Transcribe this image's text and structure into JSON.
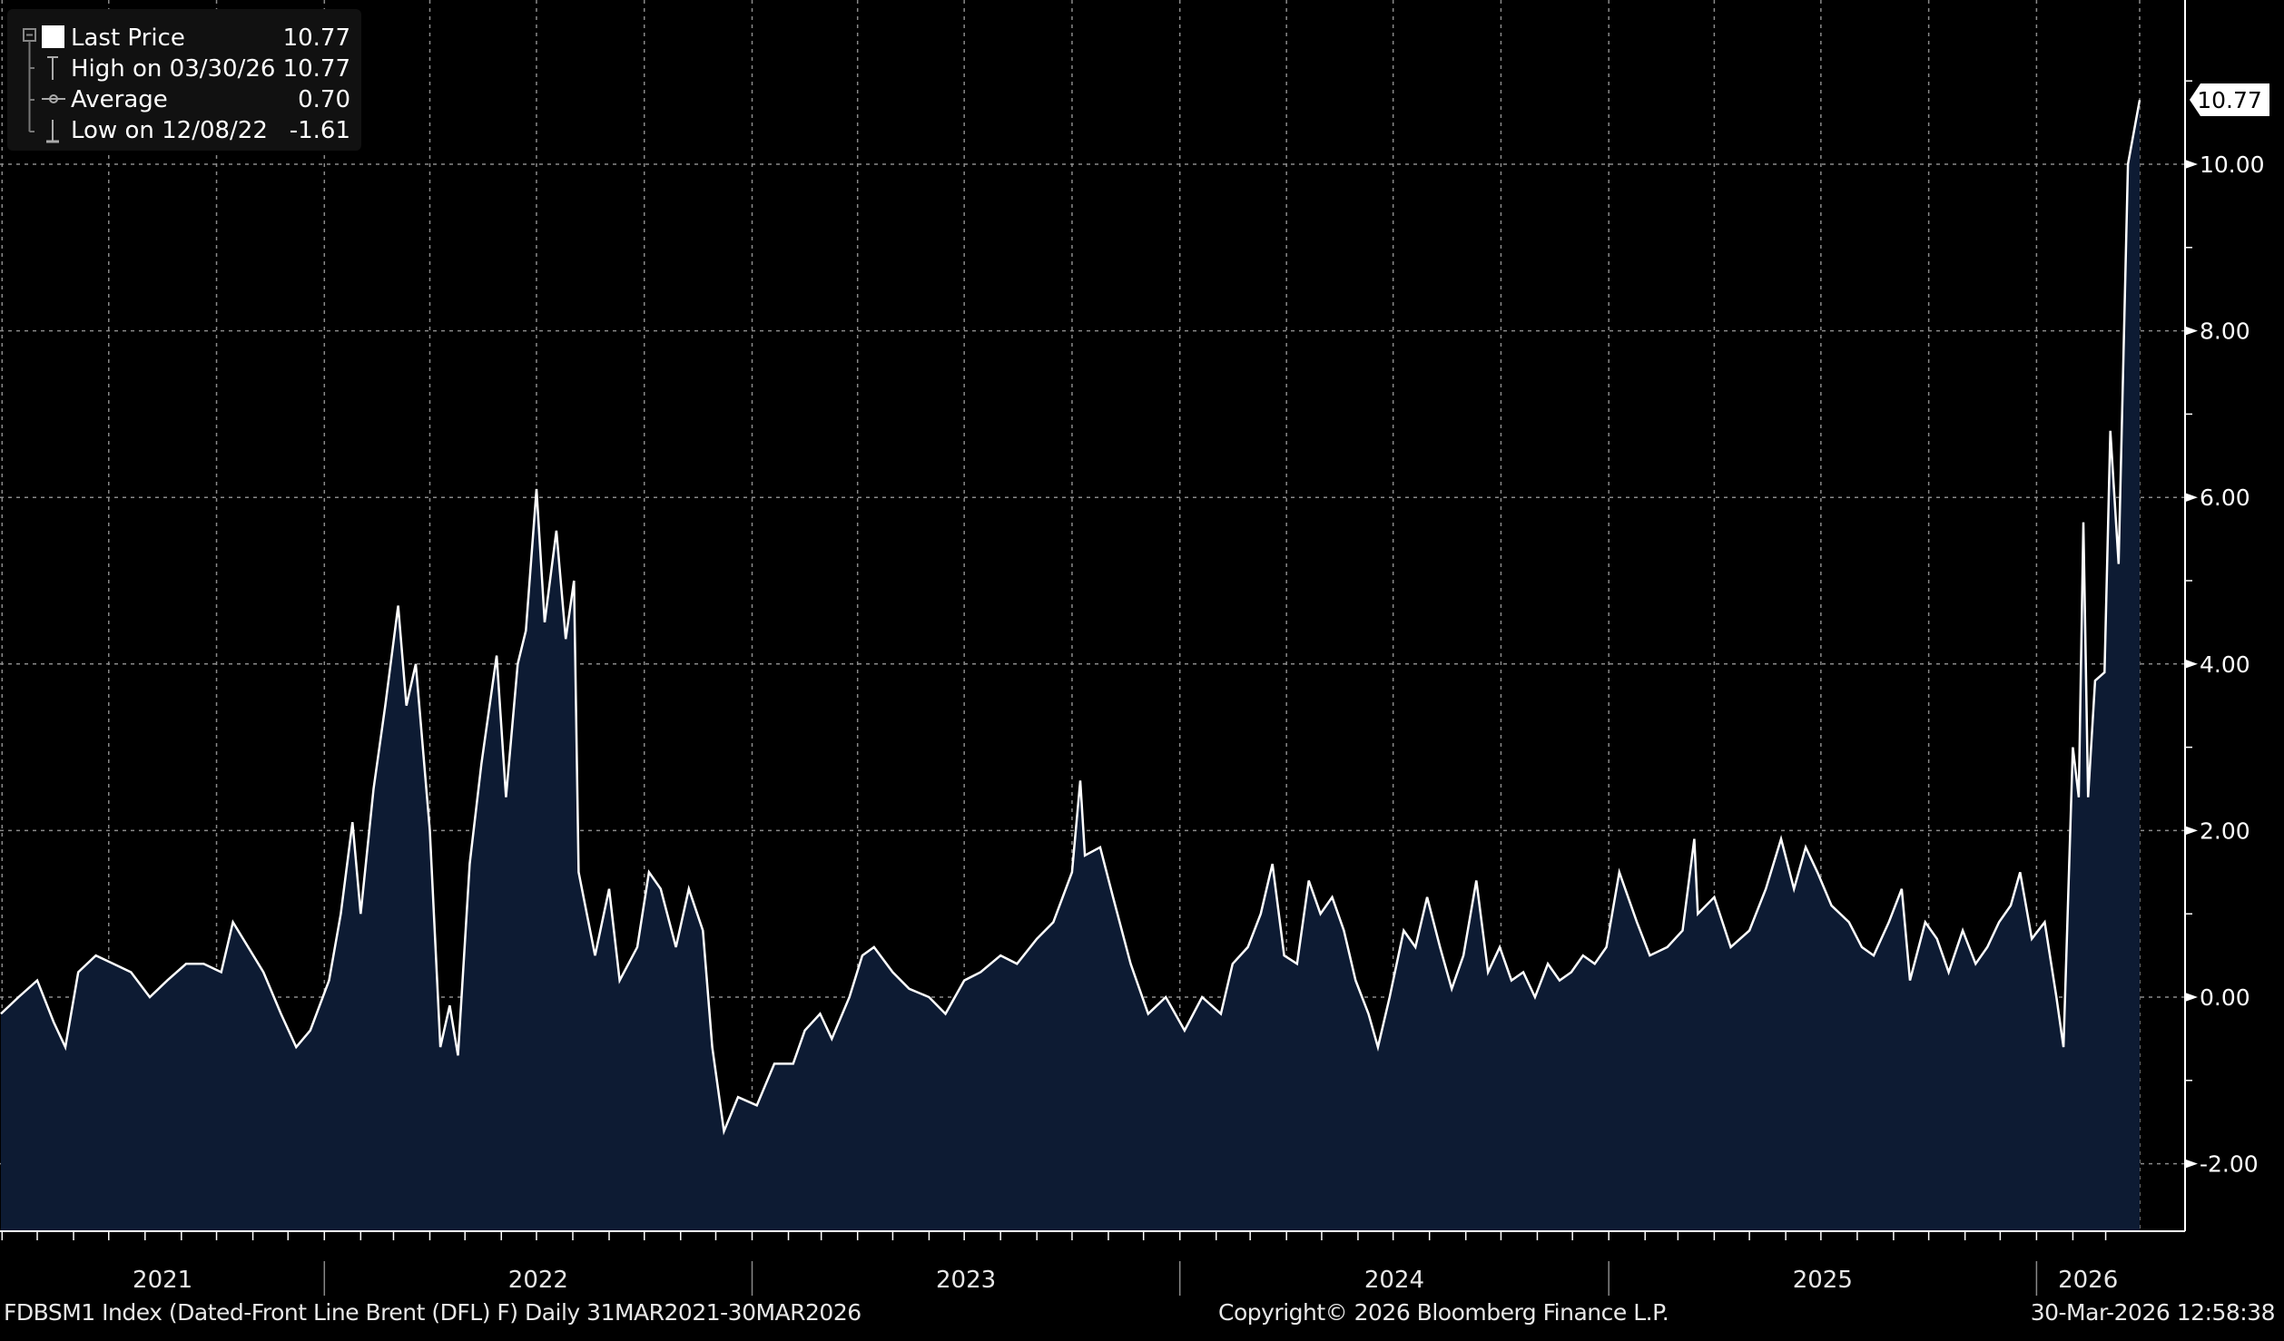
{
  "legend": {
    "items": [
      {
        "label": "Last Price",
        "value": "10.77"
      },
      {
        "label": "High on 03/30/26",
        "value": "10.77"
      },
      {
        "label": "Average",
        "value": "0.70"
      },
      {
        "label": "Low on 12/08/22",
        "value": "-1.61"
      }
    ]
  },
  "last_price_tag": "10.77",
  "footer": {
    "left": "FDBSM1 Index (Dated-Front Line Brent (DFL) F) Daily 31MAR2021-30MAR2026",
    "center": "Copyright© 2026 Bloomberg Finance L.P.",
    "right": "30-Mar-2026 12:58:38"
  },
  "colors": {
    "background": "#000000",
    "area_fill": "#0d1b33",
    "line": "#ffffff",
    "grid": "#8a8a8a"
  },
  "chart_data": {
    "type": "area",
    "title": "FDBSM1 Index (Dated-Front Line Brent (DFL) F) Daily 31MAR2021-30MAR2026",
    "x_range": [
      "2021-03-31",
      "2026-03-30"
    ],
    "ylim": [
      -2.6,
      11.6
    ],
    "y_ticks": [
      "-2.00",
      "0.00",
      "2.00",
      "4.00",
      "6.00",
      "8.00",
      "10.00"
    ],
    "y_tick_values": [
      -2,
      0,
      2,
      4,
      6,
      8,
      10
    ],
    "x_tick_labels": [
      "2021",
      "2022",
      "2023",
      "2024",
      "2025",
      "2026"
    ],
    "grid": true,
    "legend_position": "top-left",
    "series": [
      {
        "name": "Last Price",
        "points": [
          [
            "2021-03-31",
            -0.2
          ],
          [
            "2021-04-15",
            0.0
          ],
          [
            "2021-05-01",
            0.2
          ],
          [
            "2021-05-15",
            -0.3
          ],
          [
            "2021-05-25",
            -0.6
          ],
          [
            "2021-06-05",
            0.3
          ],
          [
            "2021-06-20",
            0.5
          ],
          [
            "2021-07-05",
            0.4
          ],
          [
            "2021-07-20",
            0.3
          ],
          [
            "2021-08-05",
            0.0
          ],
          [
            "2021-08-20",
            0.2
          ],
          [
            "2021-09-05",
            0.4
          ],
          [
            "2021-09-20",
            0.4
          ],
          [
            "2021-10-05",
            0.3
          ],
          [
            "2021-10-15",
            0.9
          ],
          [
            "2021-10-28",
            0.6
          ],
          [
            "2021-11-10",
            0.3
          ],
          [
            "2021-11-25",
            -0.2
          ],
          [
            "2021-12-08",
            -0.6
          ],
          [
            "2021-12-20",
            -0.4
          ],
          [
            "2022-01-05",
            0.2
          ],
          [
            "2022-01-15",
            1.0
          ],
          [
            "2022-01-25",
            2.1
          ],
          [
            "2022-02-01",
            1.0
          ],
          [
            "2022-02-12",
            2.5
          ],
          [
            "2022-02-22",
            3.5
          ],
          [
            "2022-03-05",
            4.7
          ],
          [
            "2022-03-12",
            3.5
          ],
          [
            "2022-03-20",
            4.0
          ],
          [
            "2022-04-01",
            2.0
          ],
          [
            "2022-04-10",
            -0.6
          ],
          [
            "2022-04-18",
            -0.1
          ],
          [
            "2022-04-25",
            -0.7
          ],
          [
            "2022-05-05",
            1.6
          ],
          [
            "2022-05-15",
            2.8
          ],
          [
            "2022-05-28",
            4.1
          ],
          [
            "2022-06-05",
            2.4
          ],
          [
            "2022-06-15",
            4.0
          ],
          [
            "2022-06-22",
            4.4
          ],
          [
            "2022-07-01",
            6.1
          ],
          [
            "2022-07-08",
            4.5
          ],
          [
            "2022-07-18",
            5.6
          ],
          [
            "2022-07-26",
            4.3
          ],
          [
            "2022-08-02",
            5.0
          ],
          [
            "2022-08-06",
            1.5
          ],
          [
            "2022-08-20",
            0.5
          ],
          [
            "2022-09-01",
            1.3
          ],
          [
            "2022-09-10",
            0.2
          ],
          [
            "2022-09-25",
            0.6
          ],
          [
            "2022-10-05",
            1.5
          ],
          [
            "2022-10-15",
            1.3
          ],
          [
            "2022-10-28",
            0.6
          ],
          [
            "2022-11-08",
            1.3
          ],
          [
            "2022-11-20",
            0.8
          ],
          [
            "2022-11-28",
            -0.6
          ],
          [
            "2022-12-08",
            -1.61
          ],
          [
            "2022-12-20",
            -1.2
          ],
          [
            "2023-01-05",
            -1.3
          ],
          [
            "2023-01-20",
            -0.8
          ],
          [
            "2023-02-05",
            -0.8
          ],
          [
            "2023-02-15",
            -0.4
          ],
          [
            "2023-02-28",
            -0.2
          ],
          [
            "2023-03-10",
            -0.5
          ],
          [
            "2023-03-25",
            0.0
          ],
          [
            "2023-04-05",
            0.5
          ],
          [
            "2023-04-15",
            0.6
          ],
          [
            "2023-05-01",
            0.3
          ],
          [
            "2023-05-15",
            0.1
          ],
          [
            "2023-06-01",
            0.0
          ],
          [
            "2023-06-15",
            -0.2
          ],
          [
            "2023-07-01",
            0.2
          ],
          [
            "2023-07-15",
            0.3
          ],
          [
            "2023-08-01",
            0.5
          ],
          [
            "2023-08-15",
            0.4
          ],
          [
            "2023-09-01",
            0.7
          ],
          [
            "2023-09-15",
            0.9
          ],
          [
            "2023-10-01",
            1.5
          ],
          [
            "2023-10-08",
            2.6
          ],
          [
            "2023-10-12",
            1.7
          ],
          [
            "2023-10-25",
            1.8
          ],
          [
            "2023-11-05",
            1.2
          ],
          [
            "2023-11-20",
            0.4
          ],
          [
            "2023-12-05",
            -0.2
          ],
          [
            "2023-12-20",
            0.0
          ],
          [
            "2024-01-05",
            -0.4
          ],
          [
            "2024-01-20",
            0.0
          ],
          [
            "2024-02-05",
            -0.2
          ],
          [
            "2024-02-15",
            0.4
          ],
          [
            "2024-02-28",
            0.6
          ],
          [
            "2024-03-10",
            1.0
          ],
          [
            "2024-03-20",
            1.6
          ],
          [
            "2024-03-30",
            0.5
          ],
          [
            "2024-04-10",
            0.4
          ],
          [
            "2024-04-20",
            1.4
          ],
          [
            "2024-04-30",
            1.0
          ],
          [
            "2024-05-10",
            1.2
          ],
          [
            "2024-05-20",
            0.8
          ],
          [
            "2024-05-30",
            0.2
          ],
          [
            "2024-06-10",
            -0.2
          ],
          [
            "2024-06-18",
            -0.6
          ],
          [
            "2024-06-28",
            0.0
          ],
          [
            "2024-07-10",
            0.8
          ],
          [
            "2024-07-20",
            0.6
          ],
          [
            "2024-07-30",
            1.2
          ],
          [
            "2024-08-10",
            0.6
          ],
          [
            "2024-08-20",
            0.1
          ],
          [
            "2024-08-30",
            0.5
          ],
          [
            "2024-09-10",
            1.4
          ],
          [
            "2024-09-20",
            0.3
          ],
          [
            "2024-09-30",
            0.6
          ],
          [
            "2024-10-10",
            0.2
          ],
          [
            "2024-10-20",
            0.3
          ],
          [
            "2024-10-30",
            0.0
          ],
          [
            "2024-11-10",
            0.4
          ],
          [
            "2024-11-20",
            0.2
          ],
          [
            "2024-11-30",
            0.3
          ],
          [
            "2024-12-10",
            0.5
          ],
          [
            "2024-12-20",
            0.4
          ],
          [
            "2024-12-30",
            0.6
          ],
          [
            "2025-01-10",
            1.5
          ],
          [
            "2025-01-25",
            0.9
          ],
          [
            "2025-02-05",
            0.5
          ],
          [
            "2025-02-20",
            0.6
          ],
          [
            "2025-03-05",
            0.8
          ],
          [
            "2025-03-15",
            1.9
          ],
          [
            "2025-03-18",
            1.0
          ],
          [
            "2025-04-01",
            1.2
          ],
          [
            "2025-04-15",
            0.6
          ],
          [
            "2025-05-01",
            0.8
          ],
          [
            "2025-05-15",
            1.3
          ],
          [
            "2025-05-28",
            1.9
          ],
          [
            "2025-06-08",
            1.3
          ],
          [
            "2025-06-18",
            1.8
          ],
          [
            "2025-06-28",
            1.5
          ],
          [
            "2025-07-10",
            1.1
          ],
          [
            "2025-07-25",
            0.9
          ],
          [
            "2025-08-05",
            0.6
          ],
          [
            "2025-08-15",
            0.5
          ],
          [
            "2025-08-28",
            0.9
          ],
          [
            "2025-09-08",
            1.3
          ],
          [
            "2025-09-15",
            0.2
          ],
          [
            "2025-09-28",
            0.9
          ],
          [
            "2025-10-08",
            0.7
          ],
          [
            "2025-10-18",
            0.3
          ],
          [
            "2025-10-30",
            0.8
          ],
          [
            "2025-11-10",
            0.4
          ],
          [
            "2025-11-20",
            0.6
          ],
          [
            "2025-11-30",
            0.9
          ],
          [
            "2025-12-10",
            1.1
          ],
          [
            "2025-12-18",
            1.5
          ],
          [
            "2025-12-28",
            0.7
          ],
          [
            "2026-01-08",
            0.9
          ],
          [
            "2026-01-18",
            0.0
          ],
          [
            "2026-01-24",
            -0.6
          ],
          [
            "2026-02-01",
            3.0
          ],
          [
            "2026-02-06",
            2.4
          ],
          [
            "2026-02-10",
            5.7
          ],
          [
            "2026-02-14",
            2.4
          ],
          [
            "2026-02-20",
            3.8
          ],
          [
            "2026-02-28",
            3.9
          ],
          [
            "2026-03-05",
            6.8
          ],
          [
            "2026-03-12",
            5.2
          ],
          [
            "2026-03-20",
            10.0
          ],
          [
            "2026-03-30",
            10.77
          ]
        ]
      }
    ]
  }
}
